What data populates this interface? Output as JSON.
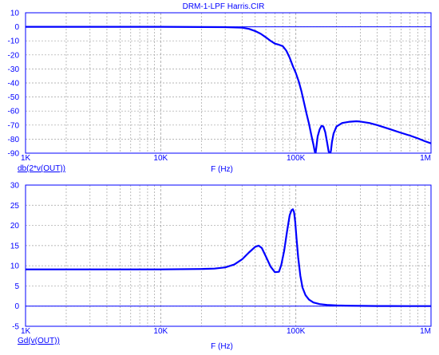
{
  "title": "DRM-1-LPF Harris.CIR",
  "colors": {
    "axis": "#0000ff",
    "trace": "#0000ff",
    "grid": "#a0a0a0",
    "background": "#ffffff"
  },
  "chart_data": [
    {
      "type": "line",
      "title": "DRM-1-LPF Harris.CIR",
      "xlabel": "F (Hz)",
      "ylabel": "db(2*v(OUT))",
      "xscale": "log",
      "xlim": [
        1000,
        1000000
      ],
      "ylim": [
        -90,
        10
      ],
      "x_ticks": [
        1000,
        10000,
        100000,
        1000000
      ],
      "x_tick_labels": [
        "1K",
        "10K",
        "100K",
        "1M"
      ],
      "y_ticks": [
        10,
        0,
        -10,
        -20,
        -30,
        -40,
        -50,
        -60,
        -70,
        -80,
        -90
      ],
      "y_tick_labels": [
        "10",
        "0",
        "-10",
        "-20",
        "-30",
        "-40",
        "-50",
        "-60",
        "-70",
        "-80",
        "-90"
      ],
      "grid": true,
      "series": [
        {
          "name": "db(2*v(OUT))",
          "x": [
            1000,
            10000,
            30000,
            40000,
            45000,
            50000,
            55000,
            60000,
            65000,
            70000,
            75000,
            80000,
            85000,
            90000,
            95000,
            100000,
            105000,
            110000,
            115000,
            120000,
            125000,
            130000,
            135000,
            138000,
            140000,
            142000,
            145000,
            150000,
            155000,
            160000,
            165000,
            170000,
            175000,
            180000,
            182000,
            185000,
            190000,
            200000,
            220000,
            250000,
            280000,
            300000,
            350000,
            400000,
            500000,
            600000,
            700000,
            800000,
            900000,
            1000000
          ],
          "y": [
            0,
            0,
            -0.2,
            -0.6,
            -1.5,
            -3,
            -5,
            -7.5,
            -10,
            -12,
            -12.8,
            -13.8,
            -17,
            -22,
            -28,
            -33,
            -39,
            -46,
            -54,
            -62,
            -69,
            -77,
            -84,
            -89,
            -90,
            -85,
            -78,
            -73,
            -70.5,
            -71,
            -75,
            -82,
            -89,
            -90,
            -88,
            -82,
            -76,
            -71,
            -68.5,
            -67.6,
            -67.3,
            -67.5,
            -68.5,
            -70,
            -73,
            -75.5,
            -77.5,
            -79.5,
            -81.5,
            -83
          ]
        }
      ]
    },
    {
      "type": "line",
      "xlabel": "F (Hz)",
      "ylabel": "Gd(v(OUT))",
      "xscale": "log",
      "xlim": [
        1000,
        1000000
      ],
      "ylim": [
        -5,
        30
      ],
      "x_ticks": [
        1000,
        10000,
        100000,
        1000000
      ],
      "x_tick_labels": [
        "1K",
        "10K",
        "100K",
        "1M"
      ],
      "y_ticks": [
        30,
        25,
        20,
        15,
        10,
        5,
        0,
        -5
      ],
      "y_tick_labels": [
        "30",
        "25",
        "20",
        "15",
        "10",
        "5",
        "0",
        "-5"
      ],
      "grid": true,
      "series": [
        {
          "name": "Gd(v(OUT))",
          "x": [
            1000,
            10000,
            20000,
            25000,
            30000,
            35000,
            40000,
            45000,
            50000,
            53000,
            56000,
            60000,
            65000,
            70000,
            75000,
            78000,
            82000,
            86000,
            90000,
            93000,
            95000,
            97000,
            99000,
            101000,
            104000,
            108000,
            112000,
            118000,
            125000,
            135000,
            150000,
            170000,
            200000,
            250000,
            300000,
            400000,
            500000,
            700000,
            1000000
          ],
          "y": [
            9.1,
            9.1,
            9.2,
            9.3,
            9.6,
            10.3,
            11.6,
            13.3,
            14.7,
            15.0,
            14.4,
            12.3,
            9.8,
            8.4,
            8.5,
            10.2,
            13.8,
            18.5,
            22.5,
            23.8,
            24.0,
            23.3,
            20.8,
            17.0,
            12.0,
            7.5,
            4.6,
            2.7,
            1.6,
            0.9,
            0.5,
            0.3,
            0.18,
            0.1,
            0.06,
            0.03,
            0.02,
            0.01,
            0
          ]
        }
      ]
    }
  ]
}
